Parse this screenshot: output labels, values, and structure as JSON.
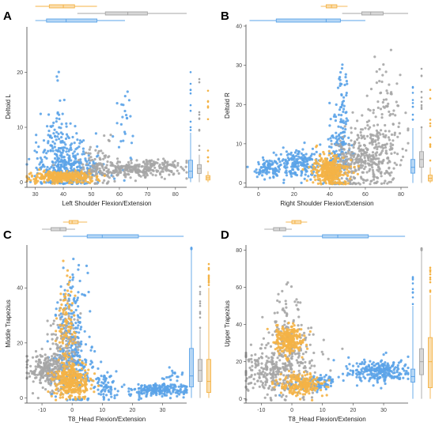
{
  "colors": {
    "blue": "#5ba3e8",
    "orange": "#f4b346",
    "gray": "#a6a6a6"
  },
  "chart_data": [
    {
      "type": "scatter",
      "panel": "A",
      "xlabel": "Left Shoulder Flexion/Extension",
      "ylabel": "Deltoid L",
      "xlim": [
        27,
        84
      ],
      "ylim": [
        -0.5,
        28
      ],
      "xticks": [
        30,
        40,
        50,
        60,
        70,
        80
      ],
      "yticks": [
        0,
        10,
        20
      ],
      "grid": false,
      "series": [
        {
          "color": "blue",
          "clusters": [
            [
              40,
              3.5,
              5,
              3,
              260
            ],
            [
              38,
              10,
              1.5,
              5,
              40
            ],
            [
              62,
              11,
              1.5,
              4,
              25
            ],
            [
              45,
              2,
              6,
              1.5,
              120
            ]
          ]
        },
        {
          "color": "gray",
          "clusters": [
            [
              62,
              2.3,
              9,
              0.8,
              260
            ],
            [
              75,
              3.0,
              4,
              0.6,
              60
            ],
            [
              52,
              2.8,
              3,
              2.5,
              60
            ]
          ]
        },
        {
          "color": "orange",
          "clusters": [
            [
              40,
              1.0,
              6,
              0.6,
              320
            ]
          ]
        }
      ],
      "xbox": {
        "blue": [
          30,
          34,
          41,
          52,
          62
        ],
        "orange": [
          30,
          35,
          40,
          44,
          52
        ],
        "gray": [
          45,
          55,
          63,
          70,
          84
        ]
      },
      "ybox": {
        "blue": [
          0,
          0.8,
          2,
          4,
          9
        ],
        "gray": [
          0,
          1.6,
          2.5,
          3.2,
          5
        ],
        "orange": [
          0,
          0.4,
          0.8,
          1.2,
          2
        ]
      }
    },
    {
      "type": "scatter",
      "panel": "B",
      "xlabel": "Right Shoulder Flexion/Extension",
      "ylabel": "Deltoid R",
      "xlim": [
        -7,
        84
      ],
      "ylim": [
        -0.5,
        40
      ],
      "xticks": [
        0,
        20,
        40,
        60,
        80
      ],
      "yticks": [
        0,
        10,
        20,
        30,
        40
      ],
      "grid": false,
      "series": [
        {
          "color": "blue",
          "clusters": [
            [
              5,
              3.5,
              4,
              1.2,
              80
            ],
            [
              22,
              5,
              7,
              2,
              200
            ],
            [
              45,
              8,
              3,
              6,
              150
            ],
            [
              47,
              21,
              1.5,
              5,
              40
            ]
          ]
        },
        {
          "color": "gray",
          "clusters": [
            [
              62,
              7,
              8,
              4,
              300
            ],
            [
              72,
              18,
              5,
              8,
              80
            ],
            [
              50,
              5,
              5,
              2,
              80
            ]
          ]
        },
        {
          "color": "orange",
          "clusters": [
            [
              40,
              3,
              5,
              2,
              340
            ]
          ]
        }
      ],
      "xbox": {
        "blue": [
          -5,
          10,
          38,
          46,
          60
        ],
        "orange": [
          35,
          38,
          41,
          44,
          50
        ],
        "gray": [
          47,
          58,
          63,
          70,
          84
        ]
      },
      "ybox": {
        "blue": [
          0,
          2.5,
          4,
          6,
          14
        ],
        "gray": [
          0,
          4,
          6,
          8,
          14
        ],
        "orange": [
          0,
          0.5,
          1.2,
          2,
          4
        ]
      }
    },
    {
      "type": "scatter",
      "panel": "C",
      "xlabel": "T8_Head Flexion/Extension",
      "ylabel": "Middle Trapezius",
      "xlim": [
        -15,
        38
      ],
      "ylim": [
        -1,
        55
      ],
      "xticks": [
        -10,
        0,
        10,
        20,
        30
      ],
      "yticks": [
        0,
        20,
        40
      ],
      "grid": false,
      "series": [
        {
          "color": "blue",
          "clusters": [
            [
              0,
              10,
              4,
              6,
              250
            ],
            [
              0,
              30,
              2.5,
              8,
              120
            ],
            [
              11,
              4,
              2,
              2,
              60
            ],
            [
              28,
              3,
              5,
              1.2,
              200
            ],
            [
              33,
              8,
              1.5,
              2,
              20
            ]
          ]
        },
        {
          "color": "gray",
          "clusters": [
            [
              -8,
              10,
              3,
              3,
              250
            ],
            [
              -2,
              20,
              2.5,
              6,
              120
            ]
          ]
        },
        {
          "color": "orange",
          "clusters": [
            [
              0,
              6,
              3,
              3,
              330
            ],
            [
              -2,
              25,
              1.5,
              9,
              100
            ]
          ]
        }
      ],
      "xbox": {
        "blue": [
          -3,
          5,
          10,
          22,
          37
        ],
        "orange": [
          -3,
          -1,
          0,
          2,
          5
        ],
        "gray": [
          -10,
          -7,
          -4,
          -2,
          1
        ]
      },
      "ybox": {
        "blue": [
          0,
          4,
          8,
          18,
          54
        ],
        "gray": [
          0,
          6,
          10,
          14,
          25
        ],
        "orange": [
          0,
          2,
          6,
          14,
          40
        ]
      }
    },
    {
      "type": "scatter",
      "panel": "D",
      "xlabel": "T8_Head Flexion/Extension",
      "ylabel": "Upper Trapezius",
      "xlim": [
        -15,
        38
      ],
      "ylim": [
        -1,
        82
      ],
      "xticks": [
        -10,
        0,
        10,
        20,
        30
      ],
      "yticks": [
        0,
        20,
        40,
        60,
        80
      ],
      "grid": false,
      "series": [
        {
          "color": "blue",
          "clusters": [
            [
              28,
              15,
              5,
              3,
              250
            ],
            [
              10,
              9,
              2,
              2,
              60
            ],
            [
              2,
              7,
              3,
              2,
              40
            ]
          ]
        },
        {
          "color": "gray",
          "clusters": [
            [
              -6,
              15,
              5,
              6,
              250
            ],
            [
              0,
              25,
              5,
              12,
              150
            ],
            [
              -2,
              45,
              3,
              8,
              40
            ]
          ]
        },
        {
          "color": "orange",
          "clusters": [
            [
              -1,
              32,
              2.5,
              4,
              250
            ],
            [
              3,
              8,
              3.5,
              3,
              200
            ]
          ]
        }
      ],
      "xbox": {
        "blue": [
          -3,
          10,
          15,
          25,
          37
        ],
        "orange": [
          -2,
          0,
          1,
          3,
          5
        ],
        "gray": [
          -9,
          -6,
          -4,
          -2,
          0
        ]
      },
      "ybox": {
        "blue": [
          0,
          9,
          12,
          16,
          50
        ],
        "gray": [
          0,
          13,
          20,
          27,
          80
        ],
        "orange": [
          0,
          6,
          20,
          33,
          56
        ]
      }
    }
  ]
}
